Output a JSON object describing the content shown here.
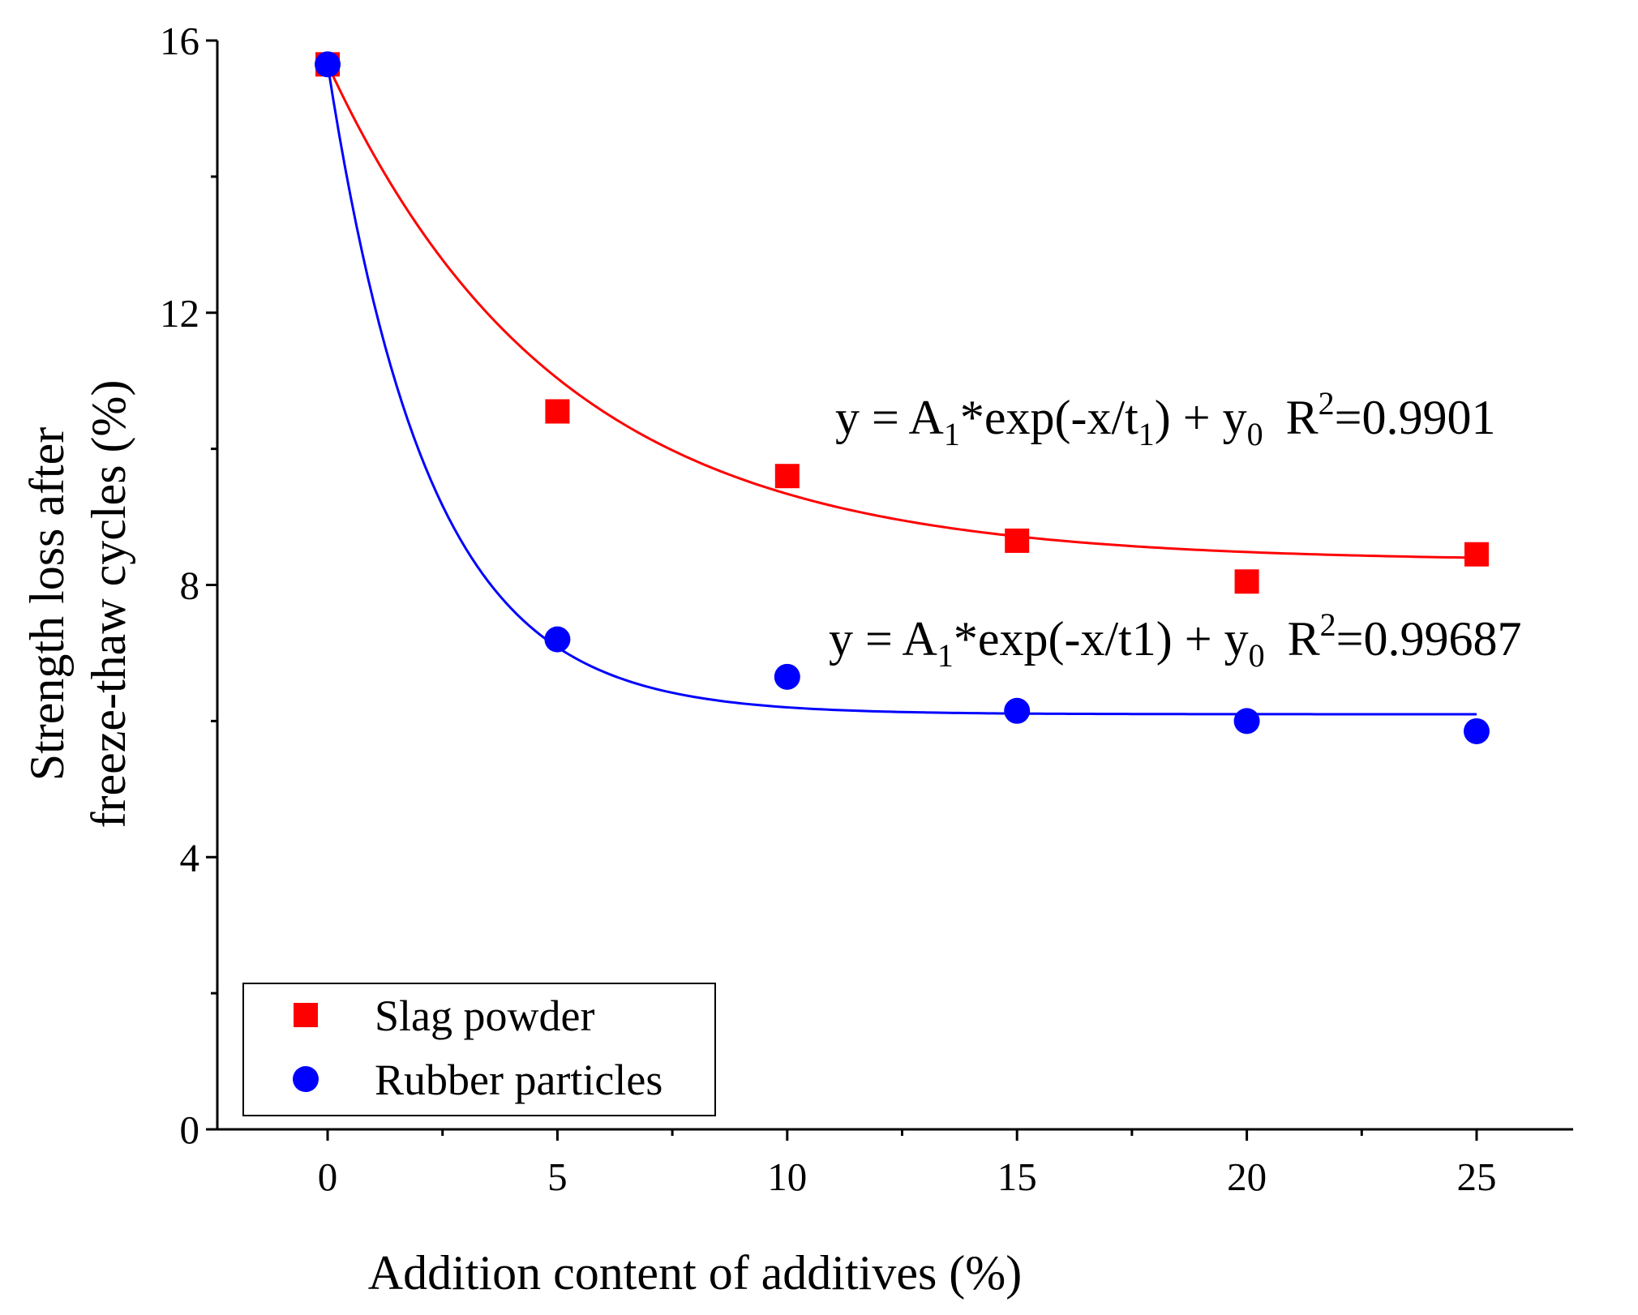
{
  "chart_data": {
    "type": "scatter",
    "title": "",
    "xlabel": "Addition content of additives (%)",
    "ylabel_lines": [
      "Strength loss after",
      "freeze-thaw cycles (%)"
    ],
    "xlim": [
      -2.4,
      27.1
    ],
    "ylim": [
      0,
      16
    ],
    "xticks": [
      0,
      5,
      10,
      15,
      20,
      25
    ],
    "yticks": [
      0,
      4,
      8,
      12,
      16
    ],
    "grid": false,
    "legend_position": "bottom-left",
    "series": [
      {
        "name": "Slag powder",
        "marker": "square",
        "color": "#ff0000",
        "x": [
          0,
          5,
          10,
          15,
          20,
          25
        ],
        "y": [
          15.65,
          10.55,
          9.6,
          8.65,
          8.05,
          8.45
        ],
        "fit": {
          "A1": 7.3,
          "t1": 5.0,
          "y0": 8.35,
          "x_range": [
            0,
            25
          ]
        },
        "equation": {
          "main": "y = A",
          "sub1": "1",
          "mid": "*exp(-x/t",
          "sub2": "1",
          "tail": ") + y",
          "sub3": "0",
          "r_label": "R",
          "r_sup": "2",
          "r_value": "=0.9901"
        }
      },
      {
        "name": "Rubber particles",
        "marker": "circle",
        "color": "#0000ff",
        "x": [
          0,
          5,
          10,
          15,
          20,
          25
        ],
        "y": [
          15.65,
          7.2,
          6.65,
          6.15,
          6.0,
          5.85
        ],
        "fit": {
          "A1": 9.55,
          "t1": 2.2,
          "y0": 6.1,
          "x_range": [
            0,
            25
          ]
        },
        "equation": {
          "main": "y = A",
          "sub1": "1",
          "mid": "*exp(-x/t1) + y",
          "sub3": "0",
          "r_label": "R",
          "r_sup": "2",
          "r_value": "=0.99687"
        }
      }
    ]
  }
}
